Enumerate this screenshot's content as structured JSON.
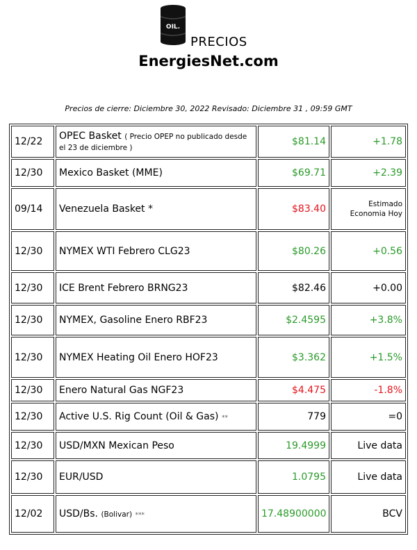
{
  "header": {
    "icon_label": "OIL.",
    "title": "PRECIOS",
    "site": "EnergiesNet.com",
    "note": "Precios de cierre: Diciembre 30, 2022 Revisado: Diciembre 31 , 09:59 GMT"
  },
  "table": {
    "rows": [
      {
        "date": "12/22",
        "name": "OPEC Basket",
        "note": "( Precio OPEP no publicado desde el 23 de diciembre )",
        "price": "$81.14",
        "change": "+1.78",
        "price_color": "#2a9a2a",
        "change_color": "#2a9a2a"
      },
      {
        "date": "12/30",
        "name": "Mexico Basket (MME)",
        "price": "$69.71",
        "change": "+2.39",
        "price_color": "#2a9a2a",
        "change_color": "#2a9a2a"
      },
      {
        "date": "09/14",
        "name": "Venezuela Basket *",
        "price": "$83.40",
        "change": [
          "Estimado",
          "Economia Hoy"
        ],
        "price_color": "#e3141c",
        "change_color": "#000000"
      },
      {
        "date": "12/30",
        "name": "NYMEX WTI Febrero CLG23",
        "price": "$80.26",
        "change": "+0.56",
        "price_color": "#2a9a2a",
        "change_color": "#2a9a2a"
      },
      {
        "date": "12/30",
        "name": "ICE Brent Febrero BRNG23",
        "price": "$82.46",
        "change": "+0.00",
        "price_color": "#000000",
        "change_color": "#000000"
      },
      {
        "date": "12/30",
        "name": "NYMEX, Gasoline Enero RBF23",
        "price": "$2.4595",
        "change": "+3.8%",
        "price_color": "#2a9a2a",
        "change_color": "#2a9a2a"
      },
      {
        "date": "12/30",
        "name": "NYMEX Heating Oil Enero HOF23",
        "price": "$3.362",
        "change": "+1.5%",
        "price_color": "#2a9a2a",
        "change_color": "#2a9a2a"
      },
      {
        "date": "12/30",
        "name": "Enero Natural Gas NGF23",
        "price": "$4.475",
        "change": "-1.8%",
        "price_color": "#e3141c",
        "change_color": "#e3141c"
      },
      {
        "date": "12/30",
        "name": "Active U.S. Rig Count (Oil & Gas)",
        "suffix": "**",
        "price": "779",
        "change": "=0",
        "price_color": "#000000",
        "change_color": "#000000"
      },
      {
        "date": "12/30",
        "name": "USD/MXN Mexican Peso",
        "price": "19.4999",
        "change": "Live data",
        "price_color": "#2a9a2a",
        "change_color": "#000000"
      },
      {
        "date": "12/30",
        "name": "EUR/USD",
        "price": "1.0795",
        "change": "Live data",
        "price_color": "#2a9a2a",
        "change_color": "#000000"
      },
      {
        "date": "12/02",
        "name": "USD/Bs.",
        "note": "(Bolivar)",
        "suffix": "***",
        "price": "17.48900000",
        "change": "BCV",
        "price_color": "#2a9a2a",
        "change_color": "#000000"
      }
    ]
  }
}
